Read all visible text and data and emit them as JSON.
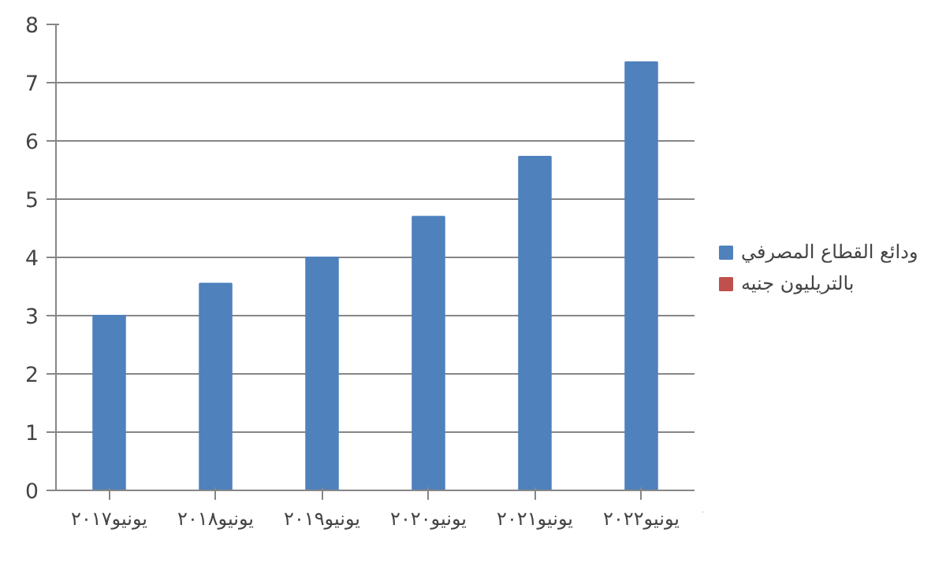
{
  "chart_data": {
    "type": "bar",
    "categories": [
      "يونيو٢٠١٧",
      "يونيو٢٠١٨",
      "يونيو٢٠١٩",
      "يونيو٢٠٢٠",
      "يونيو٢٠٢١",
      "يونيو٢٠٢٢"
    ],
    "series": [
      {
        "name": "ودائع القطاع المصرفي",
        "color": "#4f81bd",
        "values": [
          3.0,
          3.55,
          4.0,
          4.7,
          5.73,
          7.35
        ]
      },
      {
        "name": "بالتريليون جنيه",
        "color": "#c0504d",
        "values": [
          null,
          null,
          null,
          null,
          null,
          null
        ]
      }
    ],
    "ylim": [
      0,
      8
    ],
    "yticks": [
      0,
      1,
      2,
      3,
      4,
      5,
      6,
      7,
      8
    ],
    "grid": "y",
    "legend": "right"
  }
}
